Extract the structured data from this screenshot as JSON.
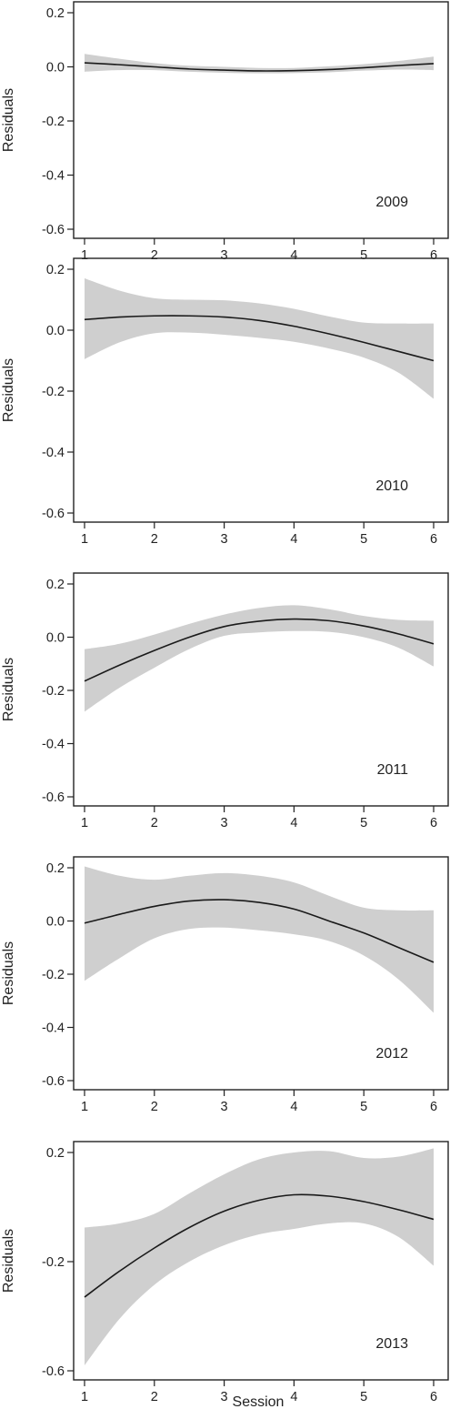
{
  "chart_data": [
    {
      "type": "line",
      "panel_label": "2009",
      "ylabel": "Residuals",
      "xlabel": "",
      "xlim": [
        1,
        6
      ],
      "ylim": [
        -0.6,
        0.2
      ],
      "xticks": [
        "1",
        "2",
        "3",
        "4",
        "5",
        "6"
      ],
      "yticks": [
        "0.2",
        "0.0",
        "-0.2",
        "-0.4",
        "-0.6"
      ],
      "ytick_values": [
        0.2,
        0.0,
        -0.2,
        -0.4,
        -0.6
      ],
      "grid": false,
      "series": [
        {
          "x": [
            1,
            1.5,
            2,
            2.5,
            3,
            3.5,
            4,
            4.5,
            5,
            5.5,
            6
          ],
          "values": [
            0.015,
            0.008,
            0.0,
            -0.008,
            -0.012,
            -0.015,
            -0.014,
            -0.01,
            -0.003,
            0.005,
            0.012
          ],
          "lower": [
            -0.018,
            -0.012,
            -0.012,
            -0.018,
            -0.022,
            -0.024,
            -0.023,
            -0.02,
            -0.014,
            -0.01,
            -0.012
          ],
          "upper": [
            0.048,
            0.03,
            0.014,
            0.004,
            0.0,
            -0.004,
            -0.004,
            0.002,
            0.01,
            0.022,
            0.038
          ]
        }
      ]
    },
    {
      "type": "line",
      "panel_label": "2010",
      "ylabel": "Residuals",
      "xlabel": "",
      "xlim": [
        1,
        6
      ],
      "ylim": [
        -0.6,
        0.2
      ],
      "xticks": [
        "1",
        "2",
        "3",
        "4",
        "5",
        "6"
      ],
      "yticks": [
        "0.2",
        "0.0",
        "-0.2",
        "-0.4",
        "-0.6"
      ],
      "ytick_values": [
        0.2,
        0.0,
        -0.2,
        -0.4,
        -0.6
      ],
      "grid": false,
      "series": [
        {
          "x": [
            1,
            1.5,
            2,
            2.5,
            3,
            3.5,
            4,
            4.5,
            5,
            5.5,
            6
          ],
          "values": [
            0.035,
            0.043,
            0.047,
            0.047,
            0.043,
            0.032,
            0.013,
            -0.012,
            -0.04,
            -0.07,
            -0.1
          ],
          "lower": [
            -0.095,
            -0.04,
            -0.01,
            -0.008,
            -0.015,
            -0.025,
            -0.038,
            -0.06,
            -0.09,
            -0.14,
            -0.225
          ],
          "upper": [
            0.17,
            0.13,
            0.105,
            0.1,
            0.098,
            0.088,
            0.07,
            0.045,
            0.025,
            0.022,
            0.022
          ]
        }
      ]
    },
    {
      "type": "line",
      "panel_label": "2011",
      "ylabel": "Residuals",
      "xlabel": "",
      "xlim": [
        1,
        6
      ],
      "ylim": [
        -0.6,
        0.2
      ],
      "xticks": [
        "1",
        "2",
        "3",
        "4",
        "5",
        "6"
      ],
      "yticks": [
        "0.2",
        "0.0",
        "-0.2",
        "-0.4",
        "-0.6"
      ],
      "ytick_values": [
        0.2,
        0.0,
        -0.2,
        -0.4,
        -0.6
      ],
      "grid": false,
      "series": [
        {
          "x": [
            1,
            1.5,
            2,
            2.5,
            3,
            3.5,
            4,
            4.5,
            5,
            5.5,
            6
          ],
          "values": [
            -0.165,
            -0.105,
            -0.05,
            0.0,
            0.04,
            0.06,
            0.068,
            0.062,
            0.042,
            0.012,
            -0.025
          ],
          "lower": [
            -0.28,
            -0.19,
            -0.115,
            -0.045,
            0.005,
            0.018,
            0.023,
            0.02,
            0.0,
            -0.04,
            -0.11
          ],
          "upper": [
            -0.045,
            -0.025,
            0.01,
            0.05,
            0.085,
            0.11,
            0.12,
            0.105,
            0.08,
            0.065,
            0.062
          ]
        }
      ]
    },
    {
      "type": "line",
      "panel_label": "2012",
      "ylabel": "Residuals",
      "xlabel": "",
      "xlim": [
        1,
        6
      ],
      "ylim": [
        -0.6,
        0.2
      ],
      "xticks": [
        "1",
        "2",
        "3",
        "4",
        "5",
        "6"
      ],
      "yticks": [
        "0.2",
        "0.0",
        "-0.2",
        "-0.4",
        "-0.6"
      ],
      "ytick_values": [
        0.2,
        0.0,
        -0.2,
        -0.4,
        -0.6
      ],
      "grid": false,
      "series": [
        {
          "x": [
            1,
            1.5,
            2,
            2.5,
            3,
            3.5,
            4,
            4.5,
            5,
            5.5,
            6
          ],
          "values": [
            -0.008,
            0.025,
            0.055,
            0.075,
            0.08,
            0.07,
            0.045,
            0.0,
            -0.045,
            -0.1,
            -0.155
          ],
          "lower": [
            -0.225,
            -0.14,
            -0.065,
            -0.03,
            -0.025,
            -0.035,
            -0.05,
            -0.075,
            -0.13,
            -0.22,
            -0.345
          ],
          "upper": [
            0.205,
            0.17,
            0.155,
            0.17,
            0.18,
            0.17,
            0.145,
            0.095,
            0.05,
            0.04,
            0.04
          ]
        }
      ]
    },
    {
      "type": "line",
      "panel_label": "2013",
      "ylabel": "Residuals",
      "xlabel": "Session",
      "xlim": [
        1,
        6
      ],
      "ylim": [
        -0.6,
        0.2
      ],
      "xticks": [
        "1",
        "2",
        "3",
        "4",
        "5",
        "6"
      ],
      "yticks": [
        "0.2",
        "-0.2",
        "-0.6"
      ],
      "ytick_values": [
        0.2,
        -0.2,
        -0.6
      ],
      "grid": false,
      "series": [
        {
          "x": [
            1,
            1.5,
            2,
            2.5,
            3,
            3.5,
            4,
            4.5,
            5,
            5.5,
            6
          ],
          "values": [
            -0.33,
            -0.235,
            -0.15,
            -0.075,
            -0.015,
            0.025,
            0.045,
            0.04,
            0.02,
            -0.01,
            -0.045
          ],
          "lower": [
            -0.58,
            -0.41,
            -0.285,
            -0.2,
            -0.14,
            -0.1,
            -0.08,
            -0.06,
            -0.06,
            -0.11,
            -0.215
          ],
          "upper": [
            -0.075,
            -0.06,
            -0.025,
            0.05,
            0.12,
            0.175,
            0.2,
            0.205,
            0.18,
            0.185,
            0.215
          ]
        }
      ]
    }
  ]
}
